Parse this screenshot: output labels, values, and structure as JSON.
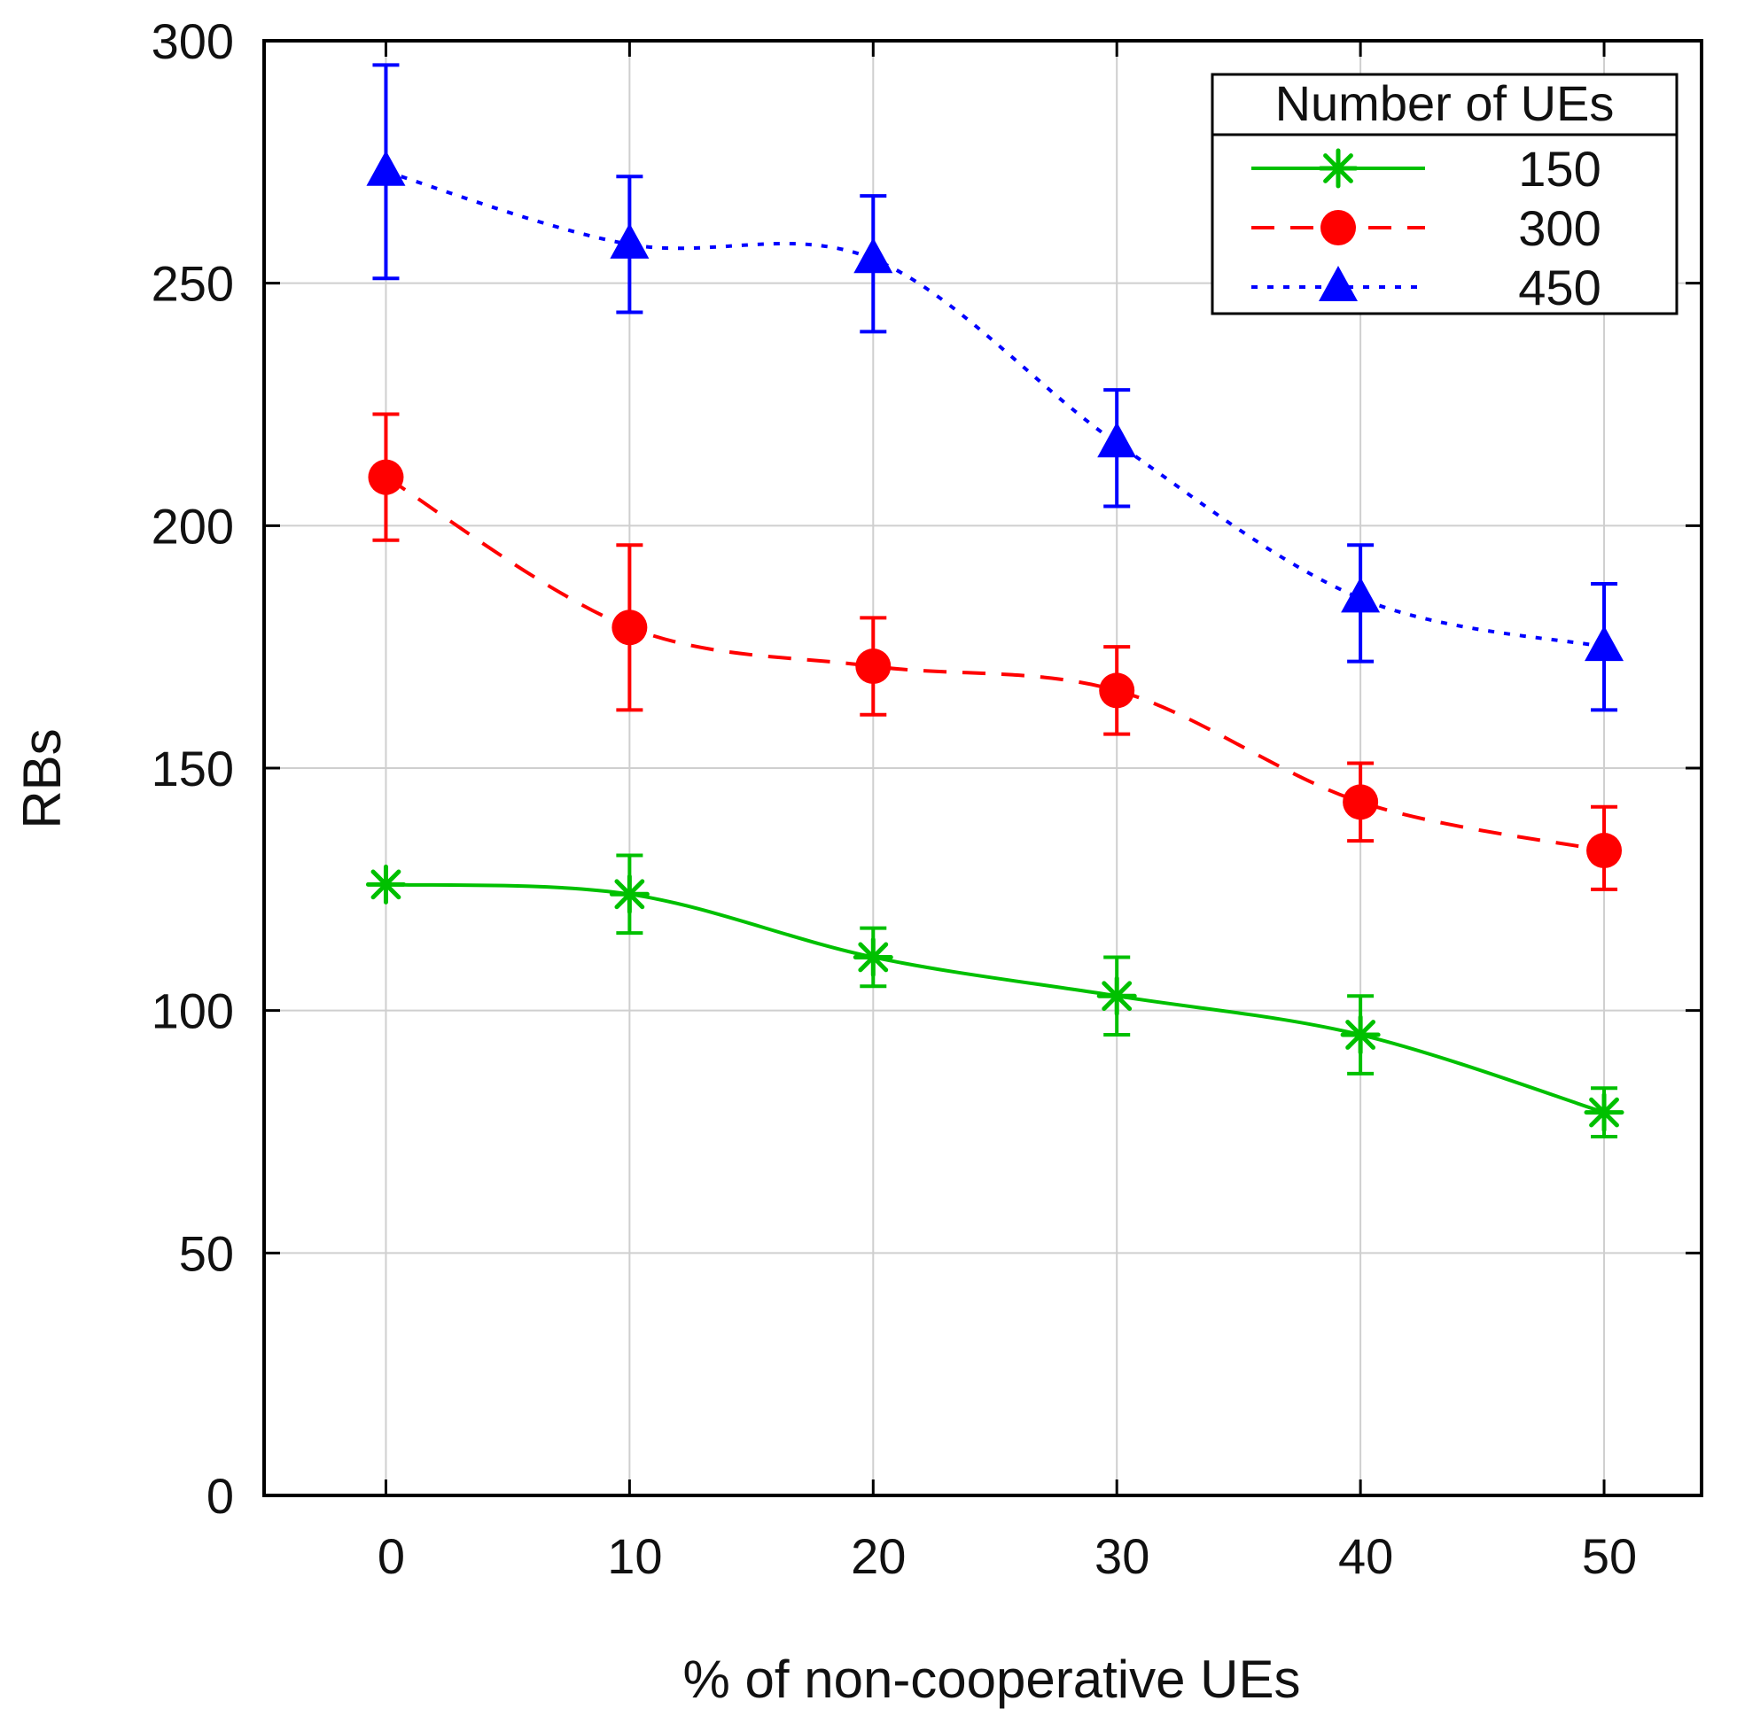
{
  "chart_data": {
    "type": "line",
    "title": "",
    "xlabel": "% of non-cooperative UEs",
    "ylabel": "RBs",
    "x": [
      0,
      10,
      20,
      30,
      40,
      50
    ],
    "xlim": [
      -5,
      54
    ],
    "ylim": [
      0,
      300
    ],
    "xticks": [
      0,
      10,
      20,
      30,
      40,
      50
    ],
    "yticks": [
      0,
      50,
      100,
      150,
      200,
      250,
      300
    ],
    "grid": true,
    "legend": {
      "title": "Number of UEs",
      "position": "top-right"
    },
    "series": [
      {
        "name": "150",
        "color": "#00c000",
        "line_style": "solid",
        "marker": "asterisk",
        "values": [
          126,
          124,
          111,
          103,
          95,
          79
        ],
        "error_low": [
          126,
          116,
          105,
          95,
          87,
          74
        ],
        "error_high": [
          126,
          132,
          117,
          111,
          103,
          84
        ]
      },
      {
        "name": "300",
        "color": "#ff0000",
        "line_style": "dashed",
        "marker": "circle",
        "values": [
          210,
          179,
          171,
          166,
          143,
          133
        ],
        "error_low": [
          197,
          162,
          161,
          157,
          135,
          125
        ],
        "error_high": [
          223,
          196,
          181,
          175,
          151,
          142
        ]
      },
      {
        "name": "450",
        "color": "#0000ff",
        "line_style": "dotted",
        "marker": "triangle",
        "values": [
          273,
          258,
          255,
          217,
          185,
          175
        ],
        "error_low": [
          251,
          244,
          240,
          204,
          172,
          162
        ],
        "error_high": [
          295,
          272,
          268,
          228,
          196,
          188
        ]
      }
    ]
  }
}
